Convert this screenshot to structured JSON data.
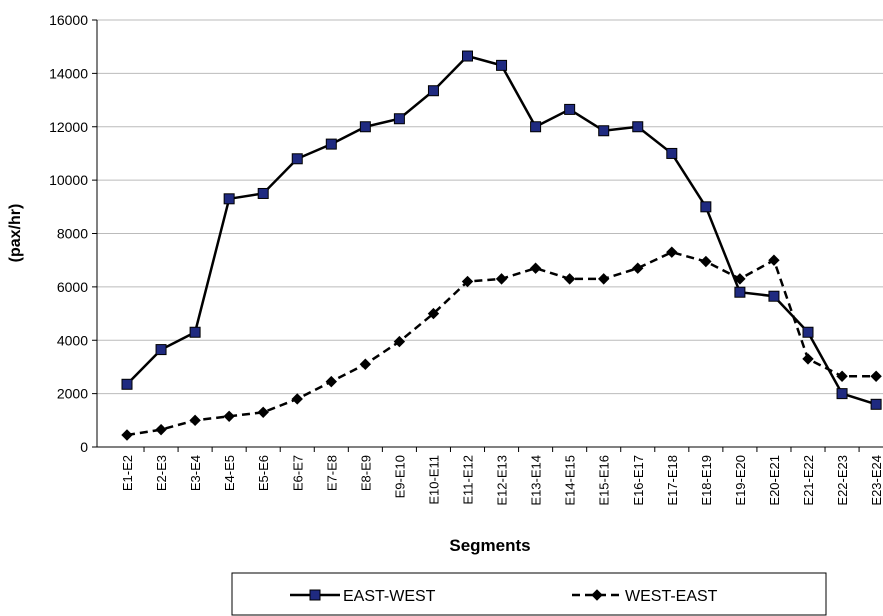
{
  "chart_data": {
    "type": "line",
    "y_label": "(pax/hr)",
    "x_label": "Segments",
    "categories": [
      "E1-E2",
      "E2-E3",
      "E3-E4",
      "E4-E5",
      "E5-E6",
      "E6-E7",
      "E7-E8",
      "E8-E9",
      "E9-E10",
      "E10-E11",
      "E11-E12",
      "E12-E13",
      "E13-E14",
      "E14-E15",
      "E15-E16",
      "E16-E17",
      "E17-E18",
      "E18-E19",
      "E19-E20",
      "E20-E21",
      "E21-E22",
      "E22-E23",
      "E23-E24"
    ],
    "series": [
      {
        "name": "EAST-WEST",
        "color": "#000000",
        "marker": "square",
        "marker_color": "#1f2a80",
        "line_style": "solid",
        "values": [
          2350,
          3650,
          4300,
          9300,
          9500,
          10800,
          11350,
          12000,
          12300,
          13350,
          14650,
          14300,
          12000,
          12650,
          11850,
          12000,
          11000,
          9000,
          5800,
          5650,
          4300,
          2000,
          1600
        ]
      },
      {
        "name": "WEST-EAST",
        "color": "#000000",
        "marker": "diamond",
        "marker_color": "#000000",
        "line_style": "dashed",
        "values": [
          450,
          650,
          1000,
          1150,
          1300,
          1800,
          2450,
          3100,
          3950,
          5000,
          6200,
          6300,
          6700,
          6300,
          6300,
          6700,
          7300,
          6950,
          6300,
          7000,
          3300,
          2650,
          2650
        ]
      }
    ],
    "ylim": [
      0,
      16000
    ],
    "yticks": [
      0,
      2000,
      4000,
      6000,
      8000,
      10000,
      12000,
      14000,
      16000
    ],
    "grid": true,
    "legend": "bottom"
  }
}
